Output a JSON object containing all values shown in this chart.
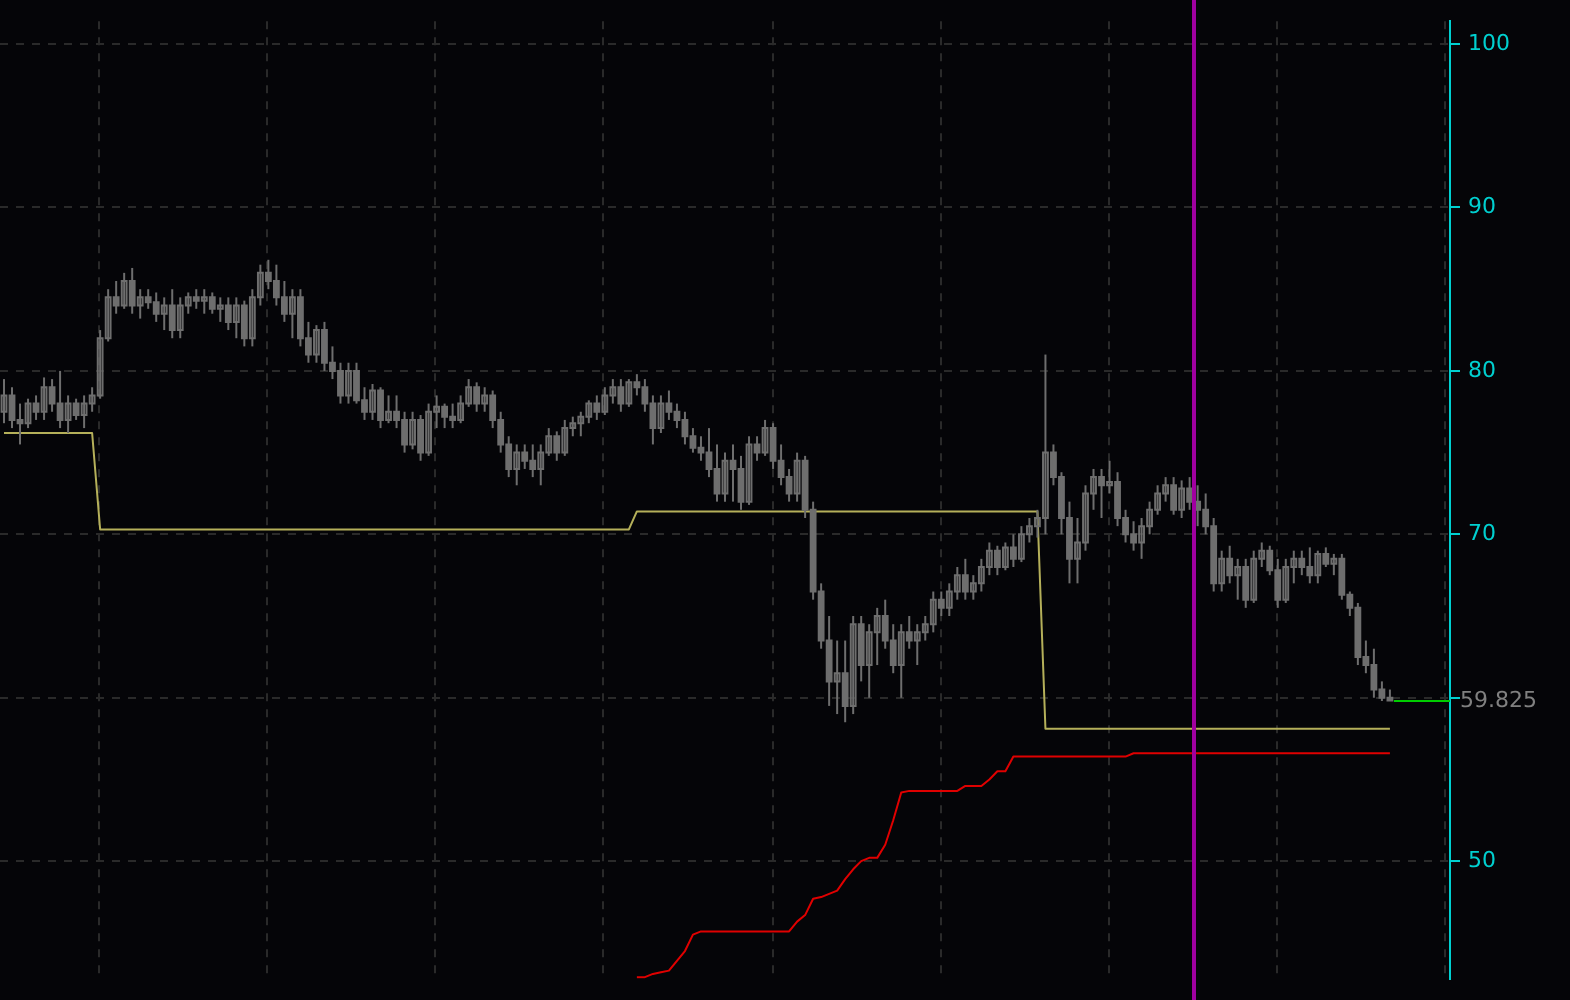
{
  "chart_data": {
    "type": "candlestick",
    "categories": [
      null,
      null,
      null,
      null,
      null,
      null,
      null,
      null,
      null,
      null,
      null,
      null,
      null,
      null,
      null,
      null,
      null,
      null,
      null,
      null,
      null,
      null,
      null,
      null,
      null,
      null,
      null,
      null,
      null,
      null,
      null,
      null,
      null,
      null,
      null,
      null,
      null,
      null,
      null,
      null,
      null,
      null,
      null,
      null,
      null,
      null,
      null,
      null,
      null,
      null,
      null,
      null,
      null,
      null,
      null,
      null,
      null,
      null,
      null,
      null,
      null,
      null,
      null,
      null,
      null,
      null,
      null,
      null,
      null,
      null,
      null,
      null,
      null,
      null,
      null,
      null,
      null,
      null,
      null,
      null,
      null,
      null,
      null,
      null,
      null,
      null,
      null,
      null,
      null,
      null,
      null,
      null,
      null,
      null,
      null,
      null,
      null,
      null,
      null,
      null,
      null,
      null,
      null,
      null,
      null,
      null,
      null,
      null,
      null,
      null,
      null,
      null,
      null,
      null,
      null,
      null,
      null,
      null,
      null,
      null,
      null,
      null,
      null,
      null,
      null,
      null,
      null,
      null,
      null,
      null,
      null,
      null,
      null,
      null,
      null,
      null,
      null,
      null,
      null,
      null,
      null,
      null,
      null,
      null,
      null,
      null,
      null,
      null,
      null,
      null,
      null,
      null,
      null,
      null,
      null,
      null,
      null,
      null,
      null,
      null,
      null,
      null,
      null,
      null,
      null,
      null,
      null,
      null,
      null,
      null,
      null,
      null,
      null,
      null,
      null,
      null,
      null,
      null,
      null,
      null,
      null
    ],
    "color": "#6e6e6e",
    "ohlc": [
      [
        77.5,
        79.5,
        76.8,
        78.5
      ],
      [
        78.5,
        79,
        76.5,
        77
      ],
      [
        77,
        78,
        75.5,
        76.8
      ],
      [
        76.8,
        78.3,
        76.5,
        78
      ],
      [
        78,
        78.5,
        77,
        77.5
      ],
      [
        77.5,
        79.6,
        77,
        79
      ],
      [
        79,
        79.5,
        77.5,
        78
      ],
      [
        78,
        80,
        76.5,
        77
      ],
      [
        77,
        78.5,
        76.2,
        78
      ],
      [
        78,
        78.3,
        77,
        77.3
      ],
      [
        77.3,
        78.5,
        76.5,
        78
      ],
      [
        78,
        79,
        77.5,
        78.5
      ],
      [
        78.5,
        82.5,
        78.3,
        82
      ],
      [
        82,
        85,
        81.8,
        84.5
      ],
      [
        84.5,
        85.5,
        83.5,
        84
      ],
      [
        84,
        86,
        83.8,
        85.5
      ],
      [
        85.5,
        86.3,
        83.5,
        84
      ],
      [
        84,
        85,
        83.2,
        84.5
      ],
      [
        84.5,
        85,
        83.8,
        84.2
      ],
      [
        84.2,
        84.8,
        83,
        83.5
      ],
      [
        83.5,
        84.5,
        82.5,
        84
      ],
      [
        84,
        85,
        82,
        82.5
      ],
      [
        82.5,
        84.5,
        82,
        84
      ],
      [
        84,
        84.8,
        83.5,
        84.5
      ],
      [
        84.5,
        85,
        83.8,
        84.3
      ],
      [
        84.3,
        85,
        83.5,
        84.5
      ],
      [
        84.5,
        84.8,
        83.5,
        83.8
      ],
      [
        83.8,
        84.5,
        83,
        84
      ],
      [
        84,
        84.5,
        82.5,
        83
      ],
      [
        83,
        84.5,
        82,
        84
      ],
      [
        84,
        84.3,
        81.5,
        82
      ],
      [
        82,
        85,
        81.5,
        84.5
      ],
      [
        84.5,
        86.5,
        84,
        86
      ],
      [
        86,
        86.8,
        85,
        85.5
      ],
      [
        85.5,
        86.5,
        84,
        84.5
      ],
      [
        84.5,
        85.5,
        83,
        83.5
      ],
      [
        83.5,
        85,
        82,
        84.5
      ],
      [
        84.5,
        85,
        81.5,
        82
      ],
      [
        82,
        83,
        80.5,
        81
      ],
      [
        81,
        82.8,
        80.5,
        82.5
      ],
      [
        82.5,
        83,
        80,
        80.5
      ],
      [
        80.5,
        81.5,
        79.5,
        80
      ],
      [
        80,
        80.5,
        78,
        78.5
      ],
      [
        78.5,
        80.5,
        78,
        80
      ],
      [
        80,
        80.5,
        78,
        78.2
      ],
      [
        78.2,
        79,
        77,
        77.5
      ],
      [
        77.5,
        79.2,
        77,
        78.8
      ],
      [
        78.8,
        79,
        76.5,
        77
      ],
      [
        77,
        78.5,
        76.8,
        77.5
      ],
      [
        77.5,
        78.5,
        76.5,
        77
      ],
      [
        77,
        77.5,
        75,
        75.5
      ],
      [
        75.5,
        77.5,
        75.2,
        77
      ],
      [
        77,
        77.3,
        74.5,
        75
      ],
      [
        75,
        78,
        74.8,
        77.5
      ],
      [
        77.5,
        78.5,
        76.5,
        77.8
      ],
      [
        77.8,
        78,
        76.5,
        77.2
      ],
      [
        77.2,
        78,
        76.5,
        77
      ],
      [
        77,
        78.5,
        76.8,
        78
      ],
      [
        78,
        79.5,
        77.8,
        79
      ],
      [
        79,
        79.3,
        77.5,
        78
      ],
      [
        78,
        79,
        77.5,
        78.5
      ],
      [
        78.5,
        78.8,
        76.5,
        77
      ],
      [
        77,
        77.5,
        75,
        75.5
      ],
      [
        75.5,
        76,
        73.5,
        74
      ],
      [
        74,
        75.5,
        73,
        75
      ],
      [
        75,
        75.5,
        74,
        74.5
      ],
      [
        74.5,
        75.5,
        73.5,
        74
      ],
      [
        74,
        75.5,
        73,
        75
      ],
      [
        75,
        76.5,
        74.8,
        76
      ],
      [
        76,
        76.3,
        74.5,
        75
      ],
      [
        75,
        77,
        74.8,
        76.5
      ],
      [
        76.5,
        77.2,
        76,
        76.8
      ],
      [
        76.8,
        77.5,
        76,
        77.2
      ],
      [
        77.2,
        78.2,
        76.8,
        78
      ],
      [
        78,
        78.5,
        77,
        77.5
      ],
      [
        77.5,
        79,
        77.3,
        78.5
      ],
      [
        78.5,
        79.5,
        78,
        79
      ],
      [
        79,
        79.5,
        77.5,
        78
      ],
      [
        78,
        79.5,
        77.8,
        79.3
      ],
      [
        79.3,
        79.8,
        78.5,
        79
      ],
      [
        79,
        79.5,
        77.5,
        78
      ],
      [
        78,
        78.5,
        75.5,
        76.5
      ],
      [
        76.5,
        78.5,
        76.2,
        78
      ],
      [
        78,
        78.8,
        77,
        77.5
      ],
      [
        77.5,
        78,
        76.5,
        77
      ],
      [
        77,
        77.5,
        75.5,
        76
      ],
      [
        76,
        76.5,
        75,
        75.3
      ],
      [
        75.3,
        76,
        74.5,
        75
      ],
      [
        75,
        76.5,
        73.5,
        74
      ],
      [
        74,
        75.5,
        72,
        72.5
      ],
      [
        72.5,
        75,
        72,
        74.5
      ],
      [
        74.5,
        75.5,
        72,
        74
      ],
      [
        74,
        74.8,
        71.5,
        72
      ],
      [
        72,
        76,
        71.8,
        75.5
      ],
      [
        75.5,
        76,
        74.5,
        75
      ],
      [
        75,
        77,
        74.8,
        76.5
      ],
      [
        76.5,
        76.8,
        74,
        74.5
      ],
      [
        74.5,
        75.5,
        73,
        73.5
      ],
      [
        73.5,
        74,
        72,
        72.5
      ],
      [
        72.5,
        75,
        72,
        74.5
      ],
      [
        74.5,
        74.8,
        71,
        71.5
      ],
      [
        71.5,
        72,
        66,
        66.5
      ],
      [
        66.5,
        67,
        63,
        63.5
      ],
      [
        63.5,
        65,
        59.5,
        61
      ],
      [
        61,
        63.5,
        59,
        61.5
      ],
      [
        61.5,
        63.5,
        58.5,
        59.5
      ],
      [
        59.5,
        65,
        59,
        64.5
      ],
      [
        64.5,
        65,
        61,
        62
      ],
      [
        62,
        64.5,
        60,
        64
      ],
      [
        64,
        65.5,
        62,
        65
      ],
      [
        65,
        66,
        63,
        63.5
      ],
      [
        63.5,
        64.5,
        61.5,
        62
      ],
      [
        62,
        64.5,
        60,
        64
      ],
      [
        64,
        65,
        63,
        63.5
      ],
      [
        63.5,
        64.5,
        62,
        64
      ],
      [
        64,
        65,
        63.5,
        64.5
      ],
      [
        64.5,
        66.5,
        64,
        66
      ],
      [
        66,
        66.5,
        65,
        65.5
      ],
      [
        65.5,
        67,
        65,
        66.5
      ],
      [
        66.5,
        68,
        66,
        67.5
      ],
      [
        67.5,
        68.5,
        66,
        66.5
      ],
      [
        66.5,
        67.5,
        66,
        67
      ],
      [
        67,
        68.5,
        66.5,
        68
      ],
      [
        68,
        69.5,
        67.5,
        69
      ],
      [
        69,
        69.3,
        67.5,
        68
      ],
      [
        68,
        69.5,
        67.8,
        69.2
      ],
      [
        69.2,
        70,
        68,
        68.5
      ],
      [
        68.5,
        70.5,
        68.3,
        70
      ],
      [
        70,
        71,
        69.5,
        70.5
      ],
      [
        70.5,
        71.5,
        69.8,
        71
      ],
      [
        71,
        81,
        70,
        75
      ],
      [
        75,
        75.5,
        73,
        73.5
      ],
      [
        73.5,
        73.8,
        70,
        71
      ],
      [
        71,
        72,
        67,
        68.5
      ],
      [
        68.5,
        71,
        67,
        69.5
      ],
      [
        69.5,
        73,
        69,
        72.5
      ],
      [
        72.5,
        74,
        71.5,
        73.5
      ],
      [
        73.5,
        74,
        71,
        73
      ],
      [
        73,
        74.5,
        72.5,
        73.2
      ],
      [
        73.2,
        73.8,
        70.5,
        71
      ],
      [
        71,
        71.5,
        69.5,
        70
      ],
      [
        70,
        70.8,
        69,
        69.5
      ],
      [
        69.5,
        71,
        68.5,
        70.5
      ],
      [
        70.5,
        72,
        70,
        71.5
      ],
      [
        71.5,
        73,
        71.2,
        72.5
      ],
      [
        72.5,
        73.5,
        72,
        73
      ],
      [
        73,
        73.5,
        71.2,
        71.5
      ],
      [
        71.5,
        73.3,
        71,
        72.8
      ],
      [
        72.8,
        73.5,
        71.5,
        72
      ],
      [
        72,
        73,
        70.5,
        71.5
      ],
      [
        71.5,
        72.5,
        70,
        70.5
      ],
      [
        70.5,
        71,
        66.5,
        67
      ],
      [
        67,
        69,
        66.5,
        68.5
      ],
      [
        68.5,
        69.3,
        67,
        67.5
      ],
      [
        67.5,
        68.5,
        66,
        68
      ],
      [
        68,
        68.5,
        65.5,
        66
      ],
      [
        66,
        69,
        65.8,
        68.5
      ],
      [
        68.5,
        69.5,
        68,
        69
      ],
      [
        69,
        69.3,
        67.5,
        67.8
      ],
      [
        67.8,
        68.5,
        65.5,
        66
      ],
      [
        66,
        68.5,
        65.8,
        68
      ],
      [
        68,
        69,
        67,
        68.5
      ],
      [
        68.5,
        69,
        67.5,
        68
      ],
      [
        68,
        69.2,
        67,
        67.5
      ],
      [
        67.5,
        69,
        67,
        68.8
      ],
      [
        68.8,
        69.2,
        68,
        68.2
      ],
      [
        68.2,
        68.8,
        67.5,
        68.5
      ],
      [
        68.5,
        68.8,
        66,
        66.3
      ],
      [
        66.3,
        66.5,
        65,
        65.5
      ],
      [
        65.5,
        65.8,
        62,
        62.5
      ],
      [
        62.5,
        63.5,
        61.5,
        62
      ],
      [
        62,
        63,
        60,
        60.5
      ],
      [
        60.5,
        61,
        59.8,
        60
      ],
      [
        60,
        60.5,
        59.8,
        59.825
      ],
      null,
      null,
      null,
      null,
      null,
      null,
      null
    ],
    "series": [
      {
        "type": "line",
        "color": "#b5b05a",
        "values": [
          76.2,
          76.2,
          76.2,
          76.2,
          76.2,
          76.2,
          76.2,
          76.2,
          76.2,
          76.2,
          76.2,
          76.2,
          70.3,
          70.3,
          70.3,
          70.3,
          70.3,
          70.3,
          70.3,
          70.3,
          70.3,
          70.3,
          70.3,
          70.3,
          70.3,
          70.3,
          70.3,
          70.3,
          70.3,
          70.3,
          70.3,
          70.3,
          70.3,
          70.3,
          70.3,
          70.3,
          70.3,
          70.3,
          70.3,
          70.3,
          70.3,
          70.3,
          70.3,
          70.3,
          70.3,
          70.3,
          70.3,
          70.3,
          70.3,
          70.3,
          70.3,
          70.3,
          70.3,
          70.3,
          70.3,
          70.3,
          70.3,
          70.3,
          70.3,
          70.3,
          70.3,
          70.3,
          70.3,
          70.3,
          70.3,
          70.3,
          70.3,
          70.3,
          70.3,
          70.3,
          70.3,
          70.3,
          70.3,
          70.3,
          70.3,
          70.3,
          70.3,
          70.3,
          70.3,
          71.4,
          71.4,
          71.4,
          71.4,
          71.4,
          71.4,
          71.4,
          71.4,
          71.4,
          71.4,
          71.4,
          71.4,
          71.4,
          71.4,
          71.4,
          71.4,
          71.4,
          71.4,
          71.4,
          71.4,
          71.4,
          71.4,
          71.4,
          71.4,
          71.4,
          71.4,
          71.4,
          71.4,
          71.4,
          71.4,
          71.4,
          71.4,
          71.4,
          71.4,
          71.4,
          71.4,
          71.4,
          71.4,
          71.4,
          71.4,
          71.4,
          71.4,
          71.4,
          71.4,
          71.4,
          71.4,
          71.4,
          71.4,
          71.4,
          71.4,
          71.4,
          58.1,
          58.1,
          58.1,
          58.1,
          58.1,
          58.1,
          58.1,
          58.1,
          58.1,
          58.1,
          58.1,
          58.1,
          58.1,
          58.1,
          58.1,
          58.1,
          58.1,
          58.1,
          58.1,
          58.1,
          58.1,
          58.1,
          58.1,
          58.1,
          58.1,
          58.1,
          58.1,
          58.1,
          58.1,
          58.1,
          58.1,
          58.1,
          58.1,
          58.1,
          58.1,
          58.1,
          58.1,
          58.1,
          58.1,
          58.1,
          58.1,
          58.1,
          58.1,
          58.1,
          null,
          null,
          null,
          null,
          null,
          null,
          null
        ]
      },
      {
        "type": "line",
        "color": "#e00000",
        "values": [
          null,
          null,
          null,
          null,
          null,
          null,
          null,
          null,
          null,
          null,
          null,
          null,
          null,
          null,
          null,
          null,
          null,
          null,
          null,
          null,
          null,
          null,
          null,
          null,
          null,
          null,
          null,
          null,
          null,
          null,
          null,
          null,
          null,
          null,
          null,
          null,
          null,
          null,
          null,
          null,
          null,
          null,
          null,
          null,
          null,
          null,
          null,
          null,
          null,
          null,
          null,
          null,
          null,
          null,
          null,
          null,
          null,
          null,
          null,
          null,
          null,
          null,
          null,
          null,
          null,
          null,
          null,
          null,
          null,
          null,
          null,
          null,
          null,
          null,
          null,
          null,
          null,
          null,
          null,
          42.9,
          42.9,
          43.1,
          43.2,
          43.3,
          43.9,
          44.5,
          45.5,
          45.7,
          45.7,
          45.7,
          45.7,
          45.7,
          45.7,
          45.7,
          45.7,
          45.7,
          45.7,
          45.7,
          45.7,
          46.3,
          46.7,
          47.7,
          47.8,
          48,
          48.2,
          48.9,
          49.5,
          50,
          50.2,
          50.2,
          51,
          52.5,
          54.2,
          54.3,
          54.3,
          54.3,
          54.3,
          54.3,
          54.3,
          54.3,
          54.6,
          54.6,
          54.6,
          55,
          55.5,
          55.5,
          56.4,
          56.4,
          56.4,
          56.4,
          56.4,
          56.4,
          56.4,
          56.4,
          56.4,
          56.4,
          56.4,
          56.4,
          56.4,
          56.4,
          56.4,
          56.6,
          56.6,
          56.6,
          56.6,
          56.6,
          56.6,
          56.6,
          56.6,
          56.6,
          56.6,
          56.6,
          56.6,
          56.6,
          56.6,
          56.6,
          56.6,
          56.6,
          56.6,
          56.6,
          56.6,
          56.6,
          56.6,
          56.6,
          56.6,
          56.6,
          56.6,
          56.6,
          56.6,
          56.6,
          56.6,
          56.6,
          56.6,
          56.6,
          null,
          null,
          null,
          null,
          null,
          null,
          null
        ]
      }
    ],
    "ylim": [
      42.8,
      101.4
    ],
    "yticks": [
      {
        "value": 50,
        "label": "50"
      },
      {
        "value": 60,
        "label": null
      },
      {
        "value": 70,
        "label": "70"
      },
      {
        "value": 80,
        "label": "80"
      },
      {
        "value": 90,
        "label": "90"
      },
      {
        "value": 100,
        "label": "100"
      }
    ],
    "tick_labels": "y",
    "grid": true,
    "ref_lines": [
      {
        "axis": "y",
        "value": 59.825,
        "label": "59.825",
        "color": "#00cc00"
      }
    ]
  }
}
